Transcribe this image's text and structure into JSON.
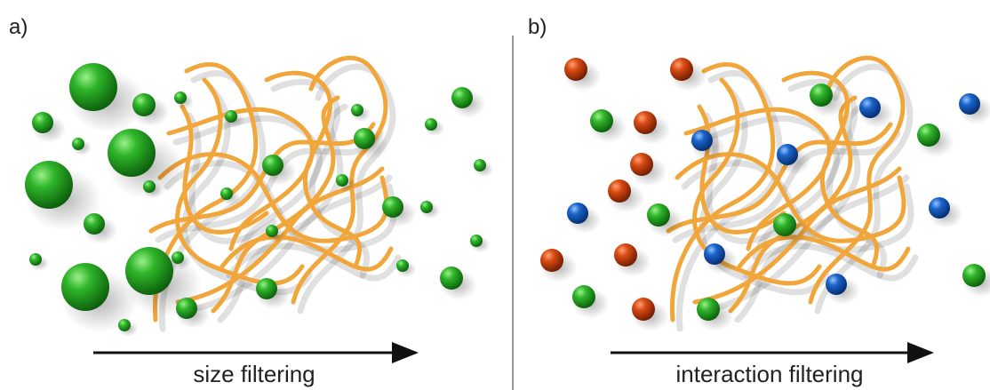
{
  "panels": [
    {
      "label": "a)",
      "caption": "size filtering"
    },
    {
      "label": "b)",
      "caption": "interaction filtering"
    }
  ]
}
